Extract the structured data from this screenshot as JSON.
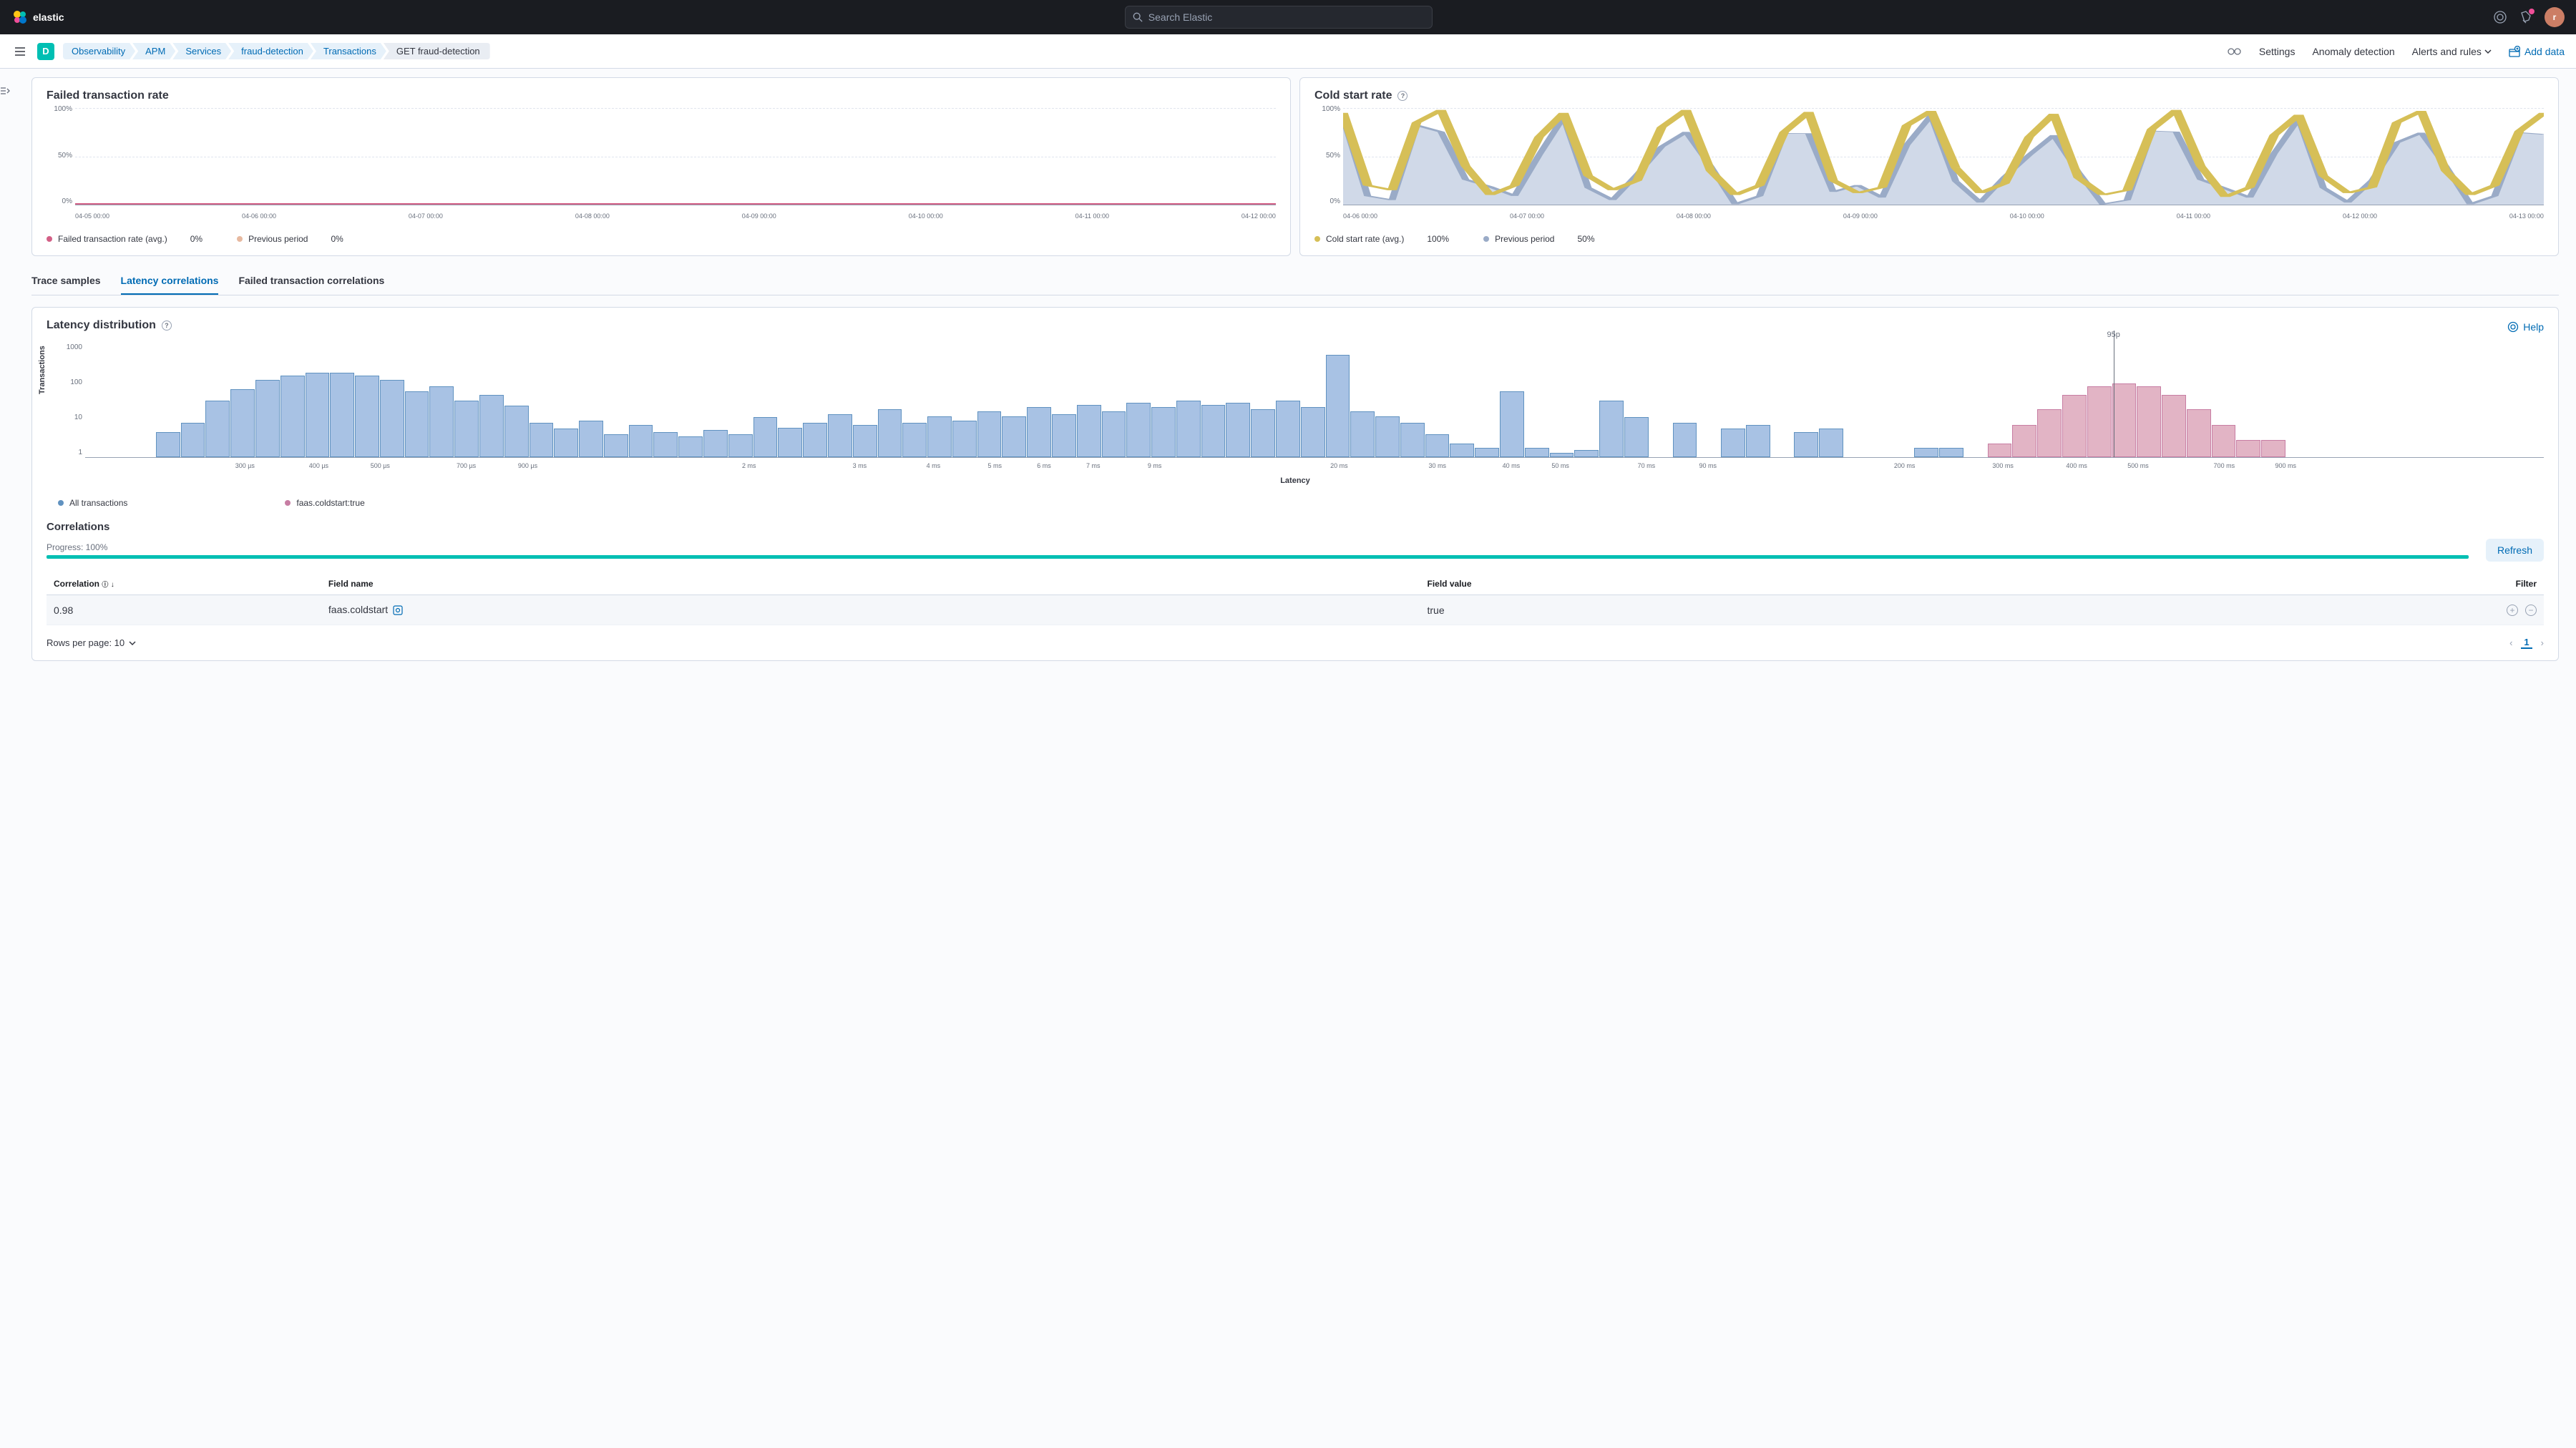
{
  "header": {
    "brand": "elastic",
    "search_placeholder": "Search Elastic",
    "avatar_initial": "r"
  },
  "subheader": {
    "space_initial": "D",
    "breadcrumbs": [
      "Observability",
      "APM",
      "Services",
      "fraud-detection",
      "Transactions",
      "GET fraud-detection"
    ],
    "links": {
      "settings": "Settings",
      "anomaly": "Anomaly detection",
      "alerts": "Alerts and rules",
      "add_data": "Add data"
    }
  },
  "failed_rate": {
    "title": "Failed transaction rate",
    "y_labels": [
      "100%",
      "50%",
      "0%"
    ],
    "x_labels": [
      "04-05 00:00",
      "04-06 00:00",
      "04-07 00:00",
      "04-08 00:00",
      "04-09 00:00",
      "04-10 00:00",
      "04-11 00:00",
      "04-12 00:00"
    ],
    "legend": [
      {
        "label": "Failed transaction rate (avg.)",
        "value": "0%",
        "color": "#d36086"
      },
      {
        "label": "Previous period",
        "value": "0%",
        "color": "#e7b9a0"
      }
    ]
  },
  "cold_start": {
    "title": "Cold start rate",
    "y_labels": [
      "100%",
      "50%",
      "0%"
    ],
    "x_labels": [
      "04-06 00:00",
      "04-07 00:00",
      "04-08 00:00",
      "04-09 00:00",
      "04-10 00:00",
      "04-11 00:00",
      "04-12 00:00",
      "04-13 00:00"
    ],
    "series1_color": "#d6bf57",
    "series2_color": "#9aabc7",
    "series2_fill": "#d0d9e8",
    "data": [
      95,
      20,
      15,
      85,
      98,
      40,
      10,
      20,
      70,
      95,
      30,
      15,
      25,
      80,
      98,
      35,
      10,
      20,
      75,
      96,
      25,
      12,
      18,
      82,
      97,
      38,
      12,
      22,
      70,
      94,
      28,
      10,
      15,
      78,
      98,
      40,
      8,
      18,
      72,
      93,
      30,
      12,
      18,
      85,
      97,
      35,
      10,
      20,
      76,
      95
    ],
    "legend": [
      {
        "label": "Cold start rate (avg.)",
        "value": "100%",
        "color": "#d6bf57"
      },
      {
        "label": "Previous period",
        "value": "50%",
        "color": "#9aabc7"
      }
    ]
  },
  "tabs": [
    "Trace samples",
    "Latency correlations",
    "Failed transaction correlations"
  ],
  "active_tab": 1,
  "latency_dist": {
    "title": "Latency distribution",
    "help": "Help",
    "y_label": "Transactions",
    "y_ticks": [
      "1000",
      "100",
      "10",
      "1"
    ],
    "x_label": "Latency",
    "x_ticks": [
      {
        "pos": 6.5,
        "label": "300 µs"
      },
      {
        "pos": 9.5,
        "label": "400 µs"
      },
      {
        "pos": 12,
        "label": "500 µs"
      },
      {
        "pos": 15.5,
        "label": "700 µs"
      },
      {
        "pos": 18,
        "label": "900 µs"
      },
      {
        "pos": 27,
        "label": "2 ms"
      },
      {
        "pos": 31.5,
        "label": "3 ms"
      },
      {
        "pos": 34.5,
        "label": "4 ms"
      },
      {
        "pos": 37,
        "label": "5 ms"
      },
      {
        "pos": 39,
        "label": "6 ms"
      },
      {
        "pos": 41,
        "label": "7 ms"
      },
      {
        "pos": 43.5,
        "label": "9 ms"
      },
      {
        "pos": 51,
        "label": "20 ms"
      },
      {
        "pos": 55,
        "label": "30 ms"
      },
      {
        "pos": 58,
        "label": "40 ms"
      },
      {
        "pos": 60,
        "label": "50 ms"
      },
      {
        "pos": 63.5,
        "label": "70 ms"
      },
      {
        "pos": 66,
        "label": "90 ms"
      },
      {
        "pos": 74,
        "label": "200 ms"
      },
      {
        "pos": 78,
        "label": "300 ms"
      },
      {
        "pos": 81,
        "label": "400 ms"
      },
      {
        "pos": 83.5,
        "label": "500 ms"
      },
      {
        "pos": 87,
        "label": "700 ms"
      },
      {
        "pos": 89.5,
        "label": "900 ms"
      }
    ],
    "p95_pos": 82.5,
    "p95_label": "95p",
    "bars": [
      {
        "h": 0,
        "c": "blue"
      },
      {
        "h": 0,
        "c": "blue"
      },
      {
        "h": 0,
        "c": "blue"
      },
      {
        "h": 22,
        "c": "blue"
      },
      {
        "h": 30,
        "c": "blue"
      },
      {
        "h": 50,
        "c": "blue"
      },
      {
        "h": 60,
        "c": "blue"
      },
      {
        "h": 68,
        "c": "blue"
      },
      {
        "h": 72,
        "c": "blue"
      },
      {
        "h": 74,
        "c": "blue"
      },
      {
        "h": 74,
        "c": "blue"
      },
      {
        "h": 72,
        "c": "blue"
      },
      {
        "h": 68,
        "c": "blue"
      },
      {
        "h": 58,
        "c": "blue"
      },
      {
        "h": 62,
        "c": "blue"
      },
      {
        "h": 50,
        "c": "blue"
      },
      {
        "h": 55,
        "c": "blue"
      },
      {
        "h": 45,
        "c": "blue"
      },
      {
        "h": 30,
        "c": "blue"
      },
      {
        "h": 25,
        "c": "blue"
      },
      {
        "h": 32,
        "c": "blue"
      },
      {
        "h": 20,
        "c": "blue"
      },
      {
        "h": 28,
        "c": "blue"
      },
      {
        "h": 22,
        "c": "blue"
      },
      {
        "h": 18,
        "c": "blue"
      },
      {
        "h": 24,
        "c": "blue"
      },
      {
        "h": 20,
        "c": "blue"
      },
      {
        "h": 35,
        "c": "blue"
      },
      {
        "h": 26,
        "c": "blue"
      },
      {
        "h": 30,
        "c": "blue"
      },
      {
        "h": 38,
        "c": "blue"
      },
      {
        "h": 28,
        "c": "blue"
      },
      {
        "h": 42,
        "c": "blue"
      },
      {
        "h": 30,
        "c": "blue"
      },
      {
        "h": 36,
        "c": "blue"
      },
      {
        "h": 32,
        "c": "blue"
      },
      {
        "h": 40,
        "c": "blue"
      },
      {
        "h": 36,
        "c": "blue"
      },
      {
        "h": 44,
        "c": "blue"
      },
      {
        "h": 38,
        "c": "blue"
      },
      {
        "h": 46,
        "c": "blue"
      },
      {
        "h": 40,
        "c": "blue"
      },
      {
        "h": 48,
        "c": "blue"
      },
      {
        "h": 44,
        "c": "blue"
      },
      {
        "h": 50,
        "c": "blue"
      },
      {
        "h": 46,
        "c": "blue"
      },
      {
        "h": 48,
        "c": "blue"
      },
      {
        "h": 42,
        "c": "blue"
      },
      {
        "h": 50,
        "c": "blue"
      },
      {
        "h": 44,
        "c": "blue"
      },
      {
        "h": 90,
        "c": "blue"
      },
      {
        "h": 40,
        "c": "blue"
      },
      {
        "h": 36,
        "c": "blue"
      },
      {
        "h": 30,
        "c": "blue"
      },
      {
        "h": 20,
        "c": "blue"
      },
      {
        "h": 12,
        "c": "blue"
      },
      {
        "h": 8,
        "c": "blue"
      },
      {
        "h": 58,
        "c": "blue"
      },
      {
        "h": 8,
        "c": "blue"
      },
      {
        "h": 4,
        "c": "blue"
      },
      {
        "h": 6,
        "c": "blue"
      },
      {
        "h": 50,
        "c": "blue"
      },
      {
        "h": 35,
        "c": "blue"
      },
      {
        "h": 0,
        "c": "blue"
      },
      {
        "h": 30,
        "c": "blue"
      },
      {
        "h": 0,
        "c": "blue"
      },
      {
        "h": 25,
        "c": "blue"
      },
      {
        "h": 28,
        "c": "blue"
      },
      {
        "h": 0,
        "c": "blue"
      },
      {
        "h": 22,
        "c": "blue"
      },
      {
        "h": 25,
        "c": "blue"
      },
      {
        "h": 0,
        "c": "blue"
      },
      {
        "h": 0,
        "c": "blue"
      },
      {
        "h": 0,
        "c": "blue"
      },
      {
        "h": 8,
        "c": "blue"
      },
      {
        "h": 8,
        "c": "blue"
      },
      {
        "h": 0,
        "c": "blue"
      },
      {
        "h": 12,
        "c": "pink"
      },
      {
        "h": 28,
        "c": "pink"
      },
      {
        "h": 42,
        "c": "pink"
      },
      {
        "h": 55,
        "c": "pink"
      },
      {
        "h": 62,
        "c": "pink"
      },
      {
        "h": 65,
        "c": "pink"
      },
      {
        "h": 62,
        "c": "pink"
      },
      {
        "h": 55,
        "c": "pink"
      },
      {
        "h": 42,
        "c": "pink"
      },
      {
        "h": 28,
        "c": "pink"
      },
      {
        "h": 15,
        "c": "pink"
      },
      {
        "h": 15,
        "c": "pink"
      },
      {
        "h": 0,
        "c": "blue"
      },
      {
        "h": 0,
        "c": "blue"
      },
      {
        "h": 0,
        "c": "blue"
      },
      {
        "h": 0,
        "c": "blue"
      },
      {
        "h": 0,
        "c": "blue"
      },
      {
        "h": 0,
        "c": "blue"
      },
      {
        "h": 0,
        "c": "blue"
      },
      {
        "h": 0,
        "c": "blue"
      },
      {
        "h": 0,
        "c": "blue"
      },
      {
        "h": 0,
        "c": "blue"
      },
      {
        "h": 0,
        "c": "blue"
      }
    ],
    "legend": [
      {
        "label": "All transactions",
        "color": "#6092c0"
      },
      {
        "label": "faas.coldstart:true",
        "color": "#c77da3"
      }
    ]
  },
  "correlations": {
    "title": "Correlations",
    "progress_label": "Progress: 100%",
    "refresh": "Refresh",
    "columns": [
      "Correlation",
      "Field name",
      "Field value",
      "Filter"
    ],
    "rows": [
      {
        "correlation": "0.98",
        "field_name": "faas.coldstart",
        "field_value": "true"
      }
    ],
    "rows_per_page": "Rows per page: 10",
    "current_page": "1"
  }
}
